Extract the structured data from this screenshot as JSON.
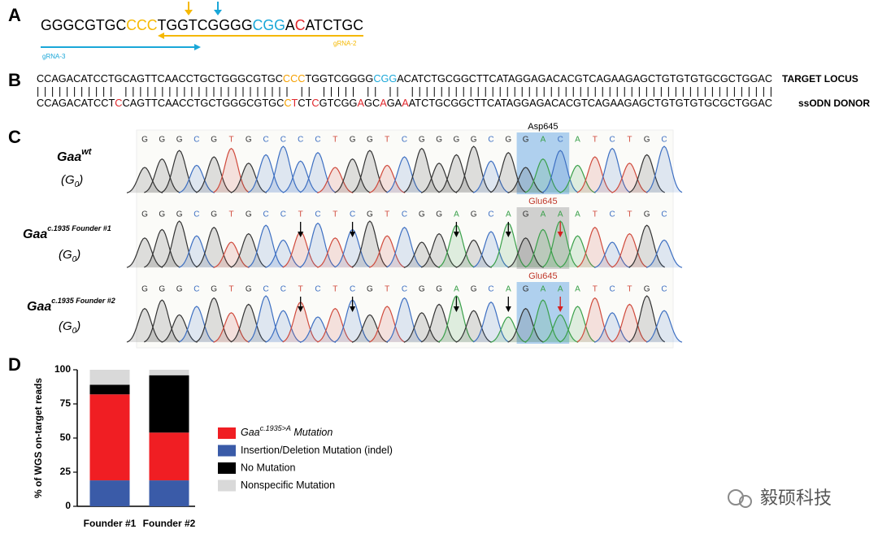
{
  "panel_a": {
    "letter": "A",
    "sequence": [
      {
        "text": "GGGCGTGC",
        "color": "#000000"
      },
      {
        "text": "CCC",
        "color": "#f5b800"
      },
      {
        "text": "TGGTCGGGG",
        "color": "#000000"
      },
      {
        "text": "CGG",
        "color": "#1aa7d8"
      },
      {
        "text": "A",
        "color": "#000000"
      },
      {
        "text": "C",
        "color": "#e0262b"
      },
      {
        "text": "ATCTGC",
        "color": "#000000"
      }
    ],
    "grna_3": {
      "label": "gRNA-3",
      "color": "#1aa7d8"
    },
    "grna_2": {
      "label": "gRNA-2",
      "color": "#f5b800"
    }
  },
  "panel_b": {
    "letter": "B",
    "target": [
      {
        "text": "CCAGACATCCTGCAGTTCAACCTGCTGGGCGTGC",
        "color": "#000000"
      },
      {
        "text": "CCC",
        "color": "#f5a000"
      },
      {
        "text": "TGGTCGGGG",
        "color": "#000000"
      },
      {
        "text": "CGG",
        "color": "#1aa7d8"
      },
      {
        "text": "ACATCTGCGGCTTCATAGGAGACACGTCAGAAGAGCTGTGTGTGCGCTGGAC",
        "color": "#000000"
      }
    ],
    "pipes": "||||||||||| ||||||||||||||||||||||| || ||||| || || ||||||||||||||||||||||||||||||||||||||||||||||||||",
    "donor": [
      {
        "text": "CCAGACATCCT",
        "color": "#000000"
      },
      {
        "text": "C",
        "color": "#e0262b"
      },
      {
        "text": "CAGTTCAACCTGCTGGGCGTGC",
        "color": "#000000"
      },
      {
        "text": "C",
        "color": "#f5a000"
      },
      {
        "text": "T",
        "color": "#e0262b"
      },
      {
        "text": "CT",
        "color": "#000000"
      },
      {
        "text": "C",
        "color": "#e0262b"
      },
      {
        "text": "GTCGG",
        "color": "#000000"
      },
      {
        "text": "A",
        "color": "#e0262b"
      },
      {
        "text": "GC",
        "color": "#000000"
      },
      {
        "text": "A",
        "color": "#e0262b"
      },
      {
        "text": "GA",
        "color": "#000000"
      },
      {
        "text": "A",
        "color": "#e0262b"
      },
      {
        "text": "ATCTGCGGCTTCATAGGAGACACGTCAGAAGAGCTGTGTGTGCGCTGGAC",
        "color": "#000000"
      }
    ],
    "target_label": "TARGET LOCUS",
    "donor_label": "ssODN DONOR"
  },
  "panel_c": {
    "letter": "C",
    "base_colors": {
      "G": "#333333",
      "C": "#3d6fc2",
      "T": "#d04a3c",
      "A": "#3aa04a"
    },
    "rows": [
      {
        "label": {
          "base": "Gaa",
          "sup": "wt"
        },
        "generation": {
          "text": "(G",
          "sub": "0",
          "end": ")"
        },
        "bases": [
          "G",
          "G",
          "G",
          "C",
          "G",
          "T",
          "G",
          "C",
          "C",
          "C",
          "C",
          "T",
          "G",
          "G",
          "T",
          "C",
          "G",
          "G",
          "G",
          "G",
          "C",
          "G",
          "G",
          "A",
          "C",
          "A",
          "T",
          "C",
          "T",
          "G",
          "C"
        ],
        "codon_label": "Asp645",
        "codon_color": "#000000",
        "highlight_color": "#8fbde9"
      },
      {
        "label": {
          "base": "Gaa",
          "sup": "c.1935 Founder #1"
        },
        "generation": {
          "text": "(G",
          "sub": "0",
          "end": ")"
        },
        "bases": [
          "G",
          "G",
          "G",
          "C",
          "G",
          "T",
          "G",
          "C",
          "C",
          "T",
          "C",
          "T",
          "C",
          "G",
          "T",
          "C",
          "G",
          "G",
          "A",
          "G",
          "C",
          "A",
          "G",
          "A",
          "A",
          "A",
          "T",
          "C",
          "T",
          "G",
          "C"
        ],
        "codon_label": "Glu645",
        "codon_color": "#c0392b",
        "highlight_color": "#bdbdbd"
      },
      {
        "label": {
          "base": "Gaa",
          "sup": "c.1935 Founder #2"
        },
        "generation": {
          "text": "(G",
          "sub": "0",
          "end": ")"
        },
        "bases": [
          "G",
          "G",
          "G",
          "C",
          "G",
          "T",
          "G",
          "C",
          "C",
          "T",
          "C",
          "T",
          "C",
          "G",
          "T",
          "C",
          "G",
          "G",
          "A",
          "G",
          "C",
          "A",
          "G",
          "A",
          "A",
          "A",
          "T",
          "C",
          "T",
          "G",
          "C"
        ],
        "codon_label": "Glu645",
        "codon_color": "#c0392b",
        "highlight_color": "#8fbde9"
      }
    ]
  },
  "chart_data": {
    "type": "bar",
    "stacked": true,
    "letter": "D",
    "ylabel": "% of WGS on-target reads",
    "categories": [
      "Founder #1",
      "Founder #2"
    ],
    "series": [
      {
        "name": {
          "base": "Gaa",
          "sup": "c.1935>A",
          "text": " Mutation"
        },
        "color": "#f01e23",
        "values": [
          63,
          35
        ]
      },
      {
        "name": "Insertion/Deletion Mutation (indel)",
        "color": "#3a5ba8",
        "values": [
          19,
          19
        ]
      },
      {
        "name": "No Mutation",
        "color": "#000000",
        "values": [
          7,
          42
        ]
      },
      {
        "name": "Nonspecific Mutation",
        "color": "#d9d9d9",
        "values": [
          11,
          4
        ]
      }
    ],
    "ylim": [
      0,
      100
    ],
    "yticks": [
      0,
      25,
      50,
      75,
      100
    ]
  },
  "watermark": "毅硕科技"
}
